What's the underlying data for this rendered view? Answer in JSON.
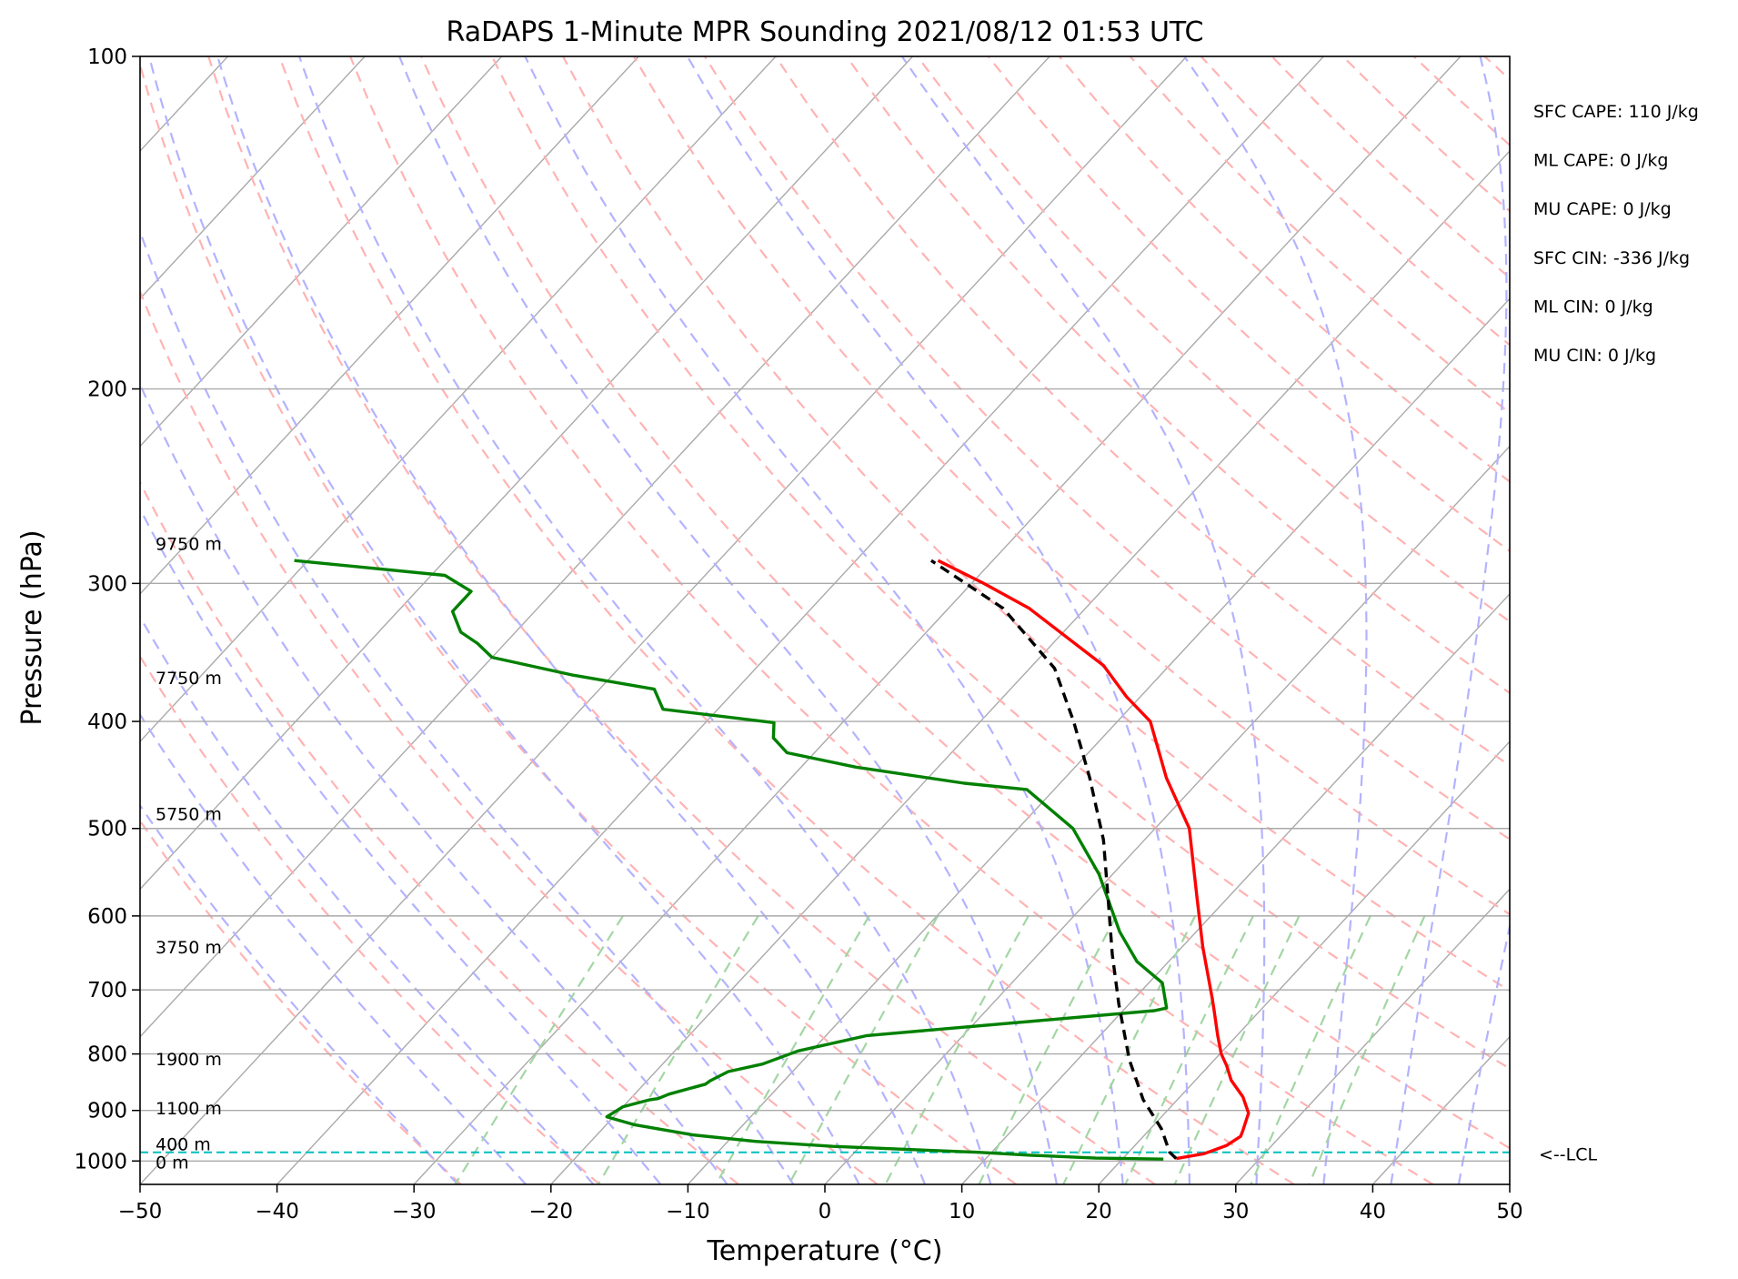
{
  "chart_data": {
    "type": "line",
    "title": "RaDAPS 1-Minute MPR Sounding 2021/08/12 01:53 UTC",
    "xlabel": "Temperature (°C)",
    "ylabel": "Pressure (hPa)",
    "xlim": [
      -50,
      50
    ],
    "ylim": [
      1050,
      100
    ],
    "y_scale": "log",
    "skew_t": true,
    "x_ticks": [
      -50,
      -40,
      -30,
      -20,
      -10,
      0,
      10,
      20,
      30,
      40,
      50
    ],
    "x_tick_labels": [
      "−50",
      "−40",
      "−30",
      "−20",
      "−10",
      "0",
      "10",
      "20",
      "30",
      "40",
      "50"
    ],
    "y_ticks": [
      100,
      200,
      300,
      400,
      500,
      600,
      700,
      800,
      900,
      1000
    ],
    "y_tick_labels": [
      "100",
      "200",
      "300",
      "400",
      "500",
      "600",
      "700",
      "800",
      "900",
      "1000"
    ],
    "grid": true,
    "background_lines": {
      "isotherms": "gray",
      "dry_adiabats": "red dashed",
      "moist_adiabats": "blue dashed",
      "mixing_ratio_lines": "green dashed"
    },
    "colors": {
      "temperature": "#ff0000",
      "dewpoint": "#008000",
      "parcel": "#000000",
      "lcl": "#00bfbf",
      "isotherm": "#aaaaaa",
      "dry_adiabat": "#ffb3b3",
      "moist_adiabat": "#b3b3ff",
      "mixing_ratio": "#a3d6a3"
    },
    "series": [
      {
        "type": "temperature",
        "points": [
          [
            23.9,
            995
          ],
          [
            25.6,
            985
          ],
          [
            26.7,
            968
          ],
          [
            27.1,
            950
          ],
          [
            26.9,
            940
          ],
          [
            26.1,
            905
          ],
          [
            24.6,
            875
          ],
          [
            22.6,
            845
          ],
          [
            21.3,
            820
          ],
          [
            20.1,
            800
          ],
          [
            18.6,
            770
          ],
          [
            16.6,
            730
          ],
          [
            15.6,
            711
          ],
          [
            11.5,
            640
          ],
          [
            7.9,
            580
          ],
          [
            2.5,
            500
          ],
          [
            -2.6,
            450
          ],
          [
            -7.6,
            400
          ],
          [
            -11.0,
            380
          ],
          [
            -14.8,
            356
          ],
          [
            -24.1,
            316
          ],
          [
            -29.1,
            300
          ],
          [
            -34.0,
            286
          ]
        ]
      },
      {
        "type": "dewpoint",
        "points": [
          [
            23.0,
            996
          ],
          [
            18.0,
            994
          ],
          [
            13.0,
            988
          ],
          [
            9.0,
            982
          ],
          [
            -2.0,
            970
          ],
          [
            -8.0,
            960
          ],
          [
            -13.0,
            947
          ],
          [
            -18.0,
            927
          ],
          [
            -20.5,
            912
          ],
          [
            -20.0,
            893
          ],
          [
            -18.5,
            880
          ],
          [
            -18.0,
            878
          ],
          [
            -17.5,
            870
          ],
          [
            -15.5,
            852
          ],
          [
            -15.4,
            846
          ],
          [
            -14.7,
            830
          ],
          [
            -12.7,
            817
          ],
          [
            -11.0,
            795
          ],
          [
            -7.0,
            770
          ],
          [
            12.3,
            731
          ],
          [
            13.0,
            727
          ],
          [
            11.0,
            690
          ],
          [
            7.7,
            660
          ],
          [
            4.4,
            620
          ],
          [
            -1.0,
            550
          ],
          [
            -6.0,
            500
          ],
          [
            -12.0,
            461
          ],
          [
            -17.0,
            455
          ],
          [
            -26.0,
            440
          ],
          [
            -32.0,
            427
          ],
          [
            -34.0,
            414
          ],
          [
            -35.0,
            401
          ],
          [
            -44.0,
            390
          ],
          [
            -46.0,
            374
          ],
          [
            -53.0,
            363
          ],
          [
            -60.0,
            350
          ],
          [
            -62.0,
            340
          ],
          [
            -64.0,
            332
          ],
          [
            -66.0,
            318
          ],
          [
            -66.0,
            305
          ],
          [
            -69.0,
            295
          ],
          [
            -81.0,
            286
          ]
        ]
      },
      {
        "type": "parcel",
        "points": [
          [
            23.9,
            995
          ],
          [
            23.0,
            982
          ],
          [
            20.8,
            935
          ],
          [
            17.5,
            880
          ],
          [
            13.8,
            810
          ],
          [
            9.3,
            722
          ],
          [
            5.4,
            650
          ],
          [
            1.4,
            580
          ],
          [
            -3.0,
            512
          ],
          [
            -8.2,
            450
          ],
          [
            -13.2,
            400
          ],
          [
            -18.2,
            358
          ],
          [
            -26.0,
            316
          ],
          [
            -34.5,
            286
          ]
        ]
      }
    ],
    "height_labels": [
      {
        "text": "9750 m",
        "pressure": 276
      },
      {
        "text": "7750 m",
        "pressure": 365
      },
      {
        "text": "5750 m",
        "pressure": 485
      },
      {
        "text": "3750 m",
        "pressure": 640
      },
      {
        "text": "1900 m",
        "pressure": 808
      },
      {
        "text": "1100 m",
        "pressure": 895
      },
      {
        "text": "400 m",
        "pressure": 965
      },
      {
        "text": "0 m",
        "pressure": 1002
      }
    ],
    "lcl": {
      "pressure": 982,
      "label": "<--LCL"
    },
    "stats": [
      "SFC CAPE: 110 J/kg",
      "ML CAPE: 0 J/kg",
      "MU CAPE: 0 J/kg",
      "SFC CIN: -336 J/kg",
      "ML CIN: 0 J/kg",
      "MU CIN: 0 J/kg"
    ]
  }
}
